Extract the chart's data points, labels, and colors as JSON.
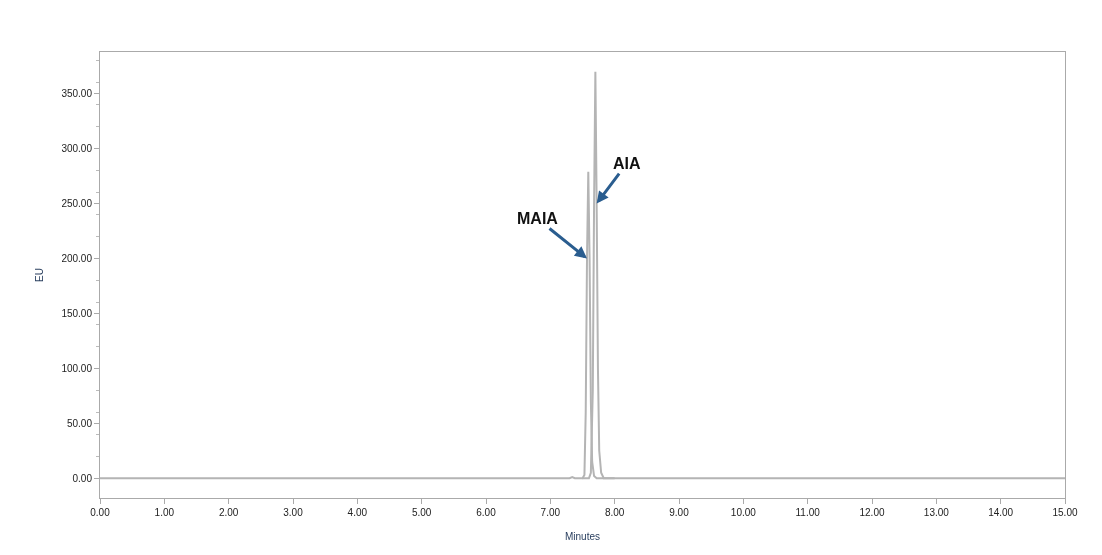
{
  "chart_data": {
    "type": "line",
    "xlabel": "Minutes",
    "ylabel": "EU",
    "xlim": [
      0,
      15
    ],
    "ylim": [
      -18,
      388
    ],
    "xticks": [
      {
        "value": 0,
        "label": "0.00"
      },
      {
        "value": 1,
        "label": "1.00"
      },
      {
        "value": 2,
        "label": "2.00"
      },
      {
        "value": 3,
        "label": "3.00"
      },
      {
        "value": 4,
        "label": "4.00"
      },
      {
        "value": 5,
        "label": "5.00"
      },
      {
        "value": 6,
        "label": "6.00"
      },
      {
        "value": 7,
        "label": "7.00"
      },
      {
        "value": 8,
        "label": "8.00"
      },
      {
        "value": 9,
        "label": "9.00"
      },
      {
        "value": 10,
        "label": "10.00"
      },
      {
        "value": 11,
        "label": "11.00"
      },
      {
        "value": 12,
        "label": "12.00"
      },
      {
        "value": 13,
        "label": "13.00"
      },
      {
        "value": 14,
        "label": "14.00"
      },
      {
        "value": 15,
        "label": "15.00"
      }
    ],
    "yticks": [
      {
        "value": 0,
        "label": "0.00"
      },
      {
        "value": 50,
        "label": "50.00"
      },
      {
        "value": 100,
        "label": "100.00"
      },
      {
        "value": 150,
        "label": "150.00"
      },
      {
        "value": 200,
        "label": "200.00"
      },
      {
        "value": 250,
        "label": "250.00"
      },
      {
        "value": 300,
        "label": "300.00"
      },
      {
        "value": 350,
        "label": "350.00"
      }
    ],
    "marker": "none",
    "line_style": "solid",
    "series": [
      {
        "color": "#b4b4b4",
        "x": [
          0,
          7.3,
          7.34,
          7.38,
          7.5,
          7.53,
          7.55,
          7.57,
          7.59,
          7.61,
          7.63,
          7.65,
          7.68,
          7.72,
          8.0,
          15
        ],
        "values": [
          0,
          0,
          1,
          0,
          0,
          3,
          60,
          200,
          279,
          200,
          70,
          15,
          2,
          0,
          0,
          0
        ]
      },
      {
        "color": "#b4b4b4",
        "x": [
          7.5,
          7.6,
          7.63,
          7.66,
          7.68,
          7.7,
          7.72,
          7.74,
          7.76,
          7.79,
          7.83,
          8.0
        ],
        "values": [
          0,
          0,
          5,
          80,
          250,
          370,
          250,
          100,
          25,
          5,
          0,
          0
        ]
      }
    ],
    "annotations": [
      {
        "text": "MAIA",
        "x": 7.57,
        "y": 200
      },
      {
        "text": "AIA",
        "x": 7.72,
        "y": 250
      }
    ]
  }
}
